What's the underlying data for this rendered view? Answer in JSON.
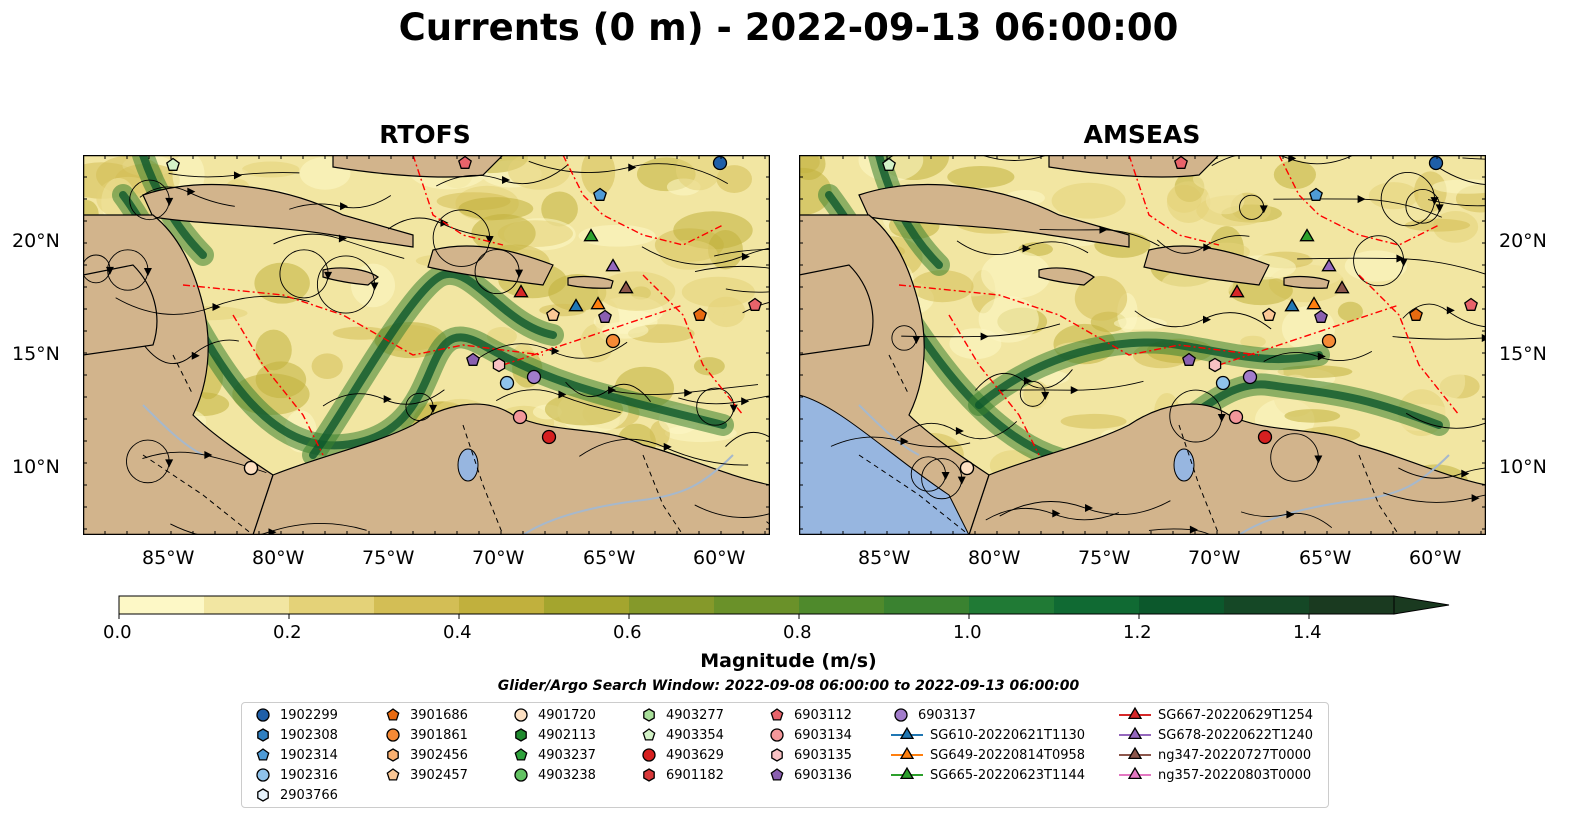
{
  "title": "Currents (0 m) - 2022-09-13 06:00:00",
  "panels": [
    {
      "title": "RTOFS"
    },
    {
      "title": "AMSEAS"
    }
  ],
  "lat_ticks": [
    "20°N",
    "15°N",
    "10°N"
  ],
  "lon_ticks": [
    "85°W",
    "80°W",
    "75°W",
    "70°W",
    "65°W",
    "60°W"
  ],
  "colorbar": {
    "label": "Magnitude (m/s)",
    "range": [
      0.0,
      1.5
    ],
    "tick_labels": [
      "0.0",
      "0.2",
      "0.4",
      "0.6",
      "0.8",
      "1.0",
      "1.2",
      "1.4"
    ],
    "colors": [
      "#fdf8c6",
      "#f2e6a2",
      "#e4d278",
      "#d3be55",
      "#c1b03d",
      "#a4a52e",
      "#85992a",
      "#6a9129",
      "#4f8a2c",
      "#3a8230",
      "#207a35",
      "#106a33",
      "#0c582c",
      "#154826",
      "#1a3a20"
    ]
  },
  "search_window": "Glider/Argo Search Window: 2022-09-08 06:00:00 to 2022-09-13 06:00:00",
  "colors": {
    "land": "#d2b48c",
    "ocean_pacific": "#97b6e0",
    "eez": "#ff0000",
    "river": "#a6b8cc"
  },
  "legend": {
    "columns": [
      [
        {
          "label": "1902299",
          "marker": "circle",
          "color": "#1f5fa8"
        },
        {
          "label": "1902308",
          "marker": "hexagon",
          "color": "#2f7fc0"
        },
        {
          "label": "1902314",
          "marker": "pentagon",
          "color": "#4f9bd6"
        },
        {
          "label": "1902316",
          "marker": "circle",
          "color": "#8fc3ec"
        },
        {
          "label": "2903766",
          "marker": "hexagon",
          "color": "#e6f2fb"
        }
      ],
      [
        {
          "label": "3901686",
          "marker": "pentagon",
          "color": "#e86a10"
        },
        {
          "label": "3901861",
          "marker": "circle",
          "color": "#f68a36"
        },
        {
          "label": "3902456",
          "marker": "hexagon",
          "color": "#f9b071"
        },
        {
          "label": "3902457",
          "marker": "pentagon",
          "color": "#fbc896"
        }
      ],
      [
        {
          "label": "4901720",
          "marker": "circle",
          "color": "#fde0c2"
        },
        {
          "label": "4902113",
          "marker": "hexagon",
          "color": "#1f8a2e"
        },
        {
          "label": "4903237",
          "marker": "pentagon",
          "color": "#2fa23c"
        },
        {
          "label": "4903238",
          "marker": "circle",
          "color": "#62c262"
        }
      ],
      [
        {
          "label": "4903277",
          "marker": "hexagon",
          "color": "#a9e09b"
        },
        {
          "label": "4903354",
          "marker": "pentagon",
          "color": "#d3f2c7"
        },
        {
          "label": "4903629",
          "marker": "circle",
          "color": "#d62020"
        },
        {
          "label": "6901182",
          "marker": "hexagon",
          "color": "#d8383a"
        }
      ],
      [
        {
          "label": "6903112",
          "marker": "pentagon",
          "color": "#e8636a"
        },
        {
          "label": "6903134",
          "marker": "circle",
          "color": "#f3979a"
        },
        {
          "label": "6903135",
          "marker": "hexagon",
          "color": "#f8c1c3"
        },
        {
          "label": "6903136",
          "marker": "pentagon",
          "color": "#8a5fb0"
        }
      ],
      [
        {
          "label": "6903137",
          "marker": "circle",
          "color": "#a27ccb"
        },
        {
          "label": "SG610-20220621T1130",
          "marker": "triangle",
          "color": "#1f77b4",
          "line": true
        },
        {
          "label": "SG649-20220814T0958",
          "marker": "triangle",
          "color": "#ff7f0e",
          "line": true
        },
        {
          "label": "SG665-20220623T1144",
          "marker": "triangle",
          "color": "#2ca02c",
          "line": true
        }
      ],
      [
        {
          "label": "SG667-20220629T1254",
          "marker": "triangle",
          "color": "#d62728",
          "line": true
        },
        {
          "label": "SG678-20220622T1240",
          "marker": "triangle",
          "color": "#9467bd",
          "line": true
        },
        {
          "label": "ng347-20220727T0000",
          "marker": "triangle",
          "color": "#8c564b",
          "line": true
        },
        {
          "label": "ng357-20220803T0000",
          "marker": "triangle",
          "color": "#e377c2",
          "line": true
        }
      ]
    ]
  }
}
